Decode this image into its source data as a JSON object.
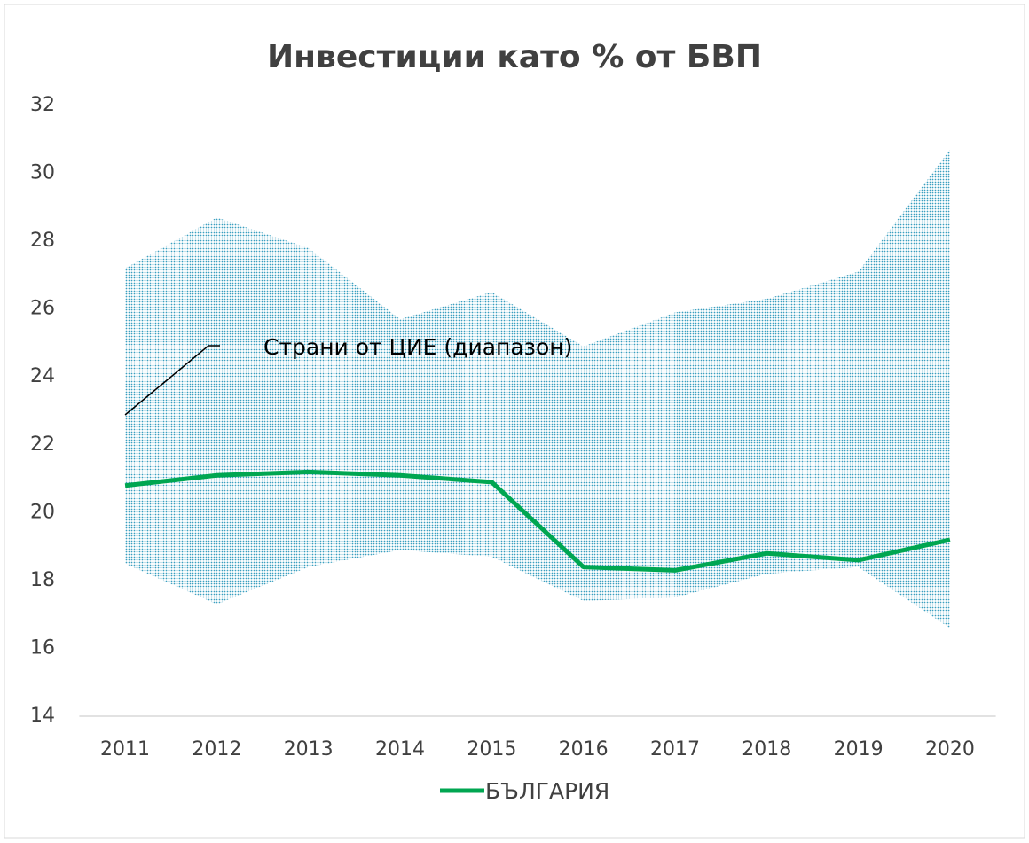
{
  "chart_data": {
    "type": "line",
    "title": "Инвестиции като % от БВП",
    "categories": [
      "2011",
      "2012",
      "2013",
      "2014",
      "2015",
      "2016",
      "2017",
      "2018",
      "2019",
      "2020"
    ],
    "band": {
      "name": "Страни от ЦИЕ (диапазон)",
      "color": "#3a9fc0",
      "high": [
        27.2,
        28.7,
        27.8,
        25.7,
        26.5,
        24.9,
        25.9,
        26.3,
        27.1,
        30.7
      ],
      "low": [
        18.5,
        17.3,
        18.4,
        18.9,
        18.7,
        17.4,
        17.5,
        18.2,
        18.4,
        16.6
      ]
    },
    "series": [
      {
        "name": "БЪЛГАРИЯ",
        "color": "#00a651",
        "values": [
          20.8,
          21.1,
          21.2,
          21.1,
          20.9,
          18.4,
          18.3,
          18.8,
          18.6,
          19.2
        ]
      }
    ],
    "ylim": [
      14,
      32
    ],
    "yticks": [
      14,
      16,
      18,
      20,
      22,
      24,
      26,
      28,
      30,
      32
    ],
    "grid": false,
    "legend": "bottom"
  }
}
